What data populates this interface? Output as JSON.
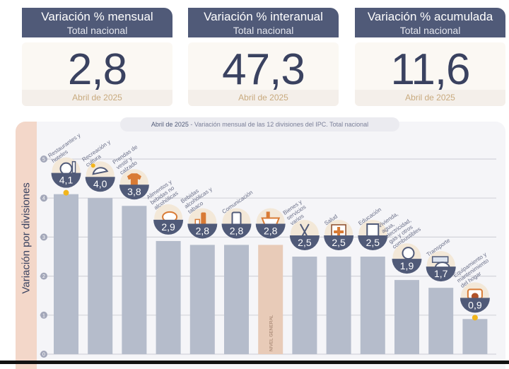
{
  "cards": [
    {
      "title": "Variación % mensual",
      "subtitle": "Total nacional",
      "value": "2,8",
      "date": "Abril de 2025"
    },
    {
      "title": "Variación % interanual",
      "subtitle": "Total nacional",
      "value": "47,3",
      "date": "Abril de 2025"
    },
    {
      "title": "Variación % acumulada",
      "subtitle": "Total nacional",
      "value": "11,6",
      "date": "Abril de 2025"
    }
  ],
  "chart_data": {
    "type": "bar",
    "title_date": "Abril de 2025",
    "title": "- Variación mensual de las 12 divisiones del IPC. Total nacional",
    "ylabel": "Variación por divisiones",
    "ylim": [
      0,
      5
    ],
    "yticks": [
      "0",
      "1",
      "2",
      "3",
      "4",
      "5"
    ],
    "categories": [
      "Restaurantes y hoteles",
      "Recreación y cultura",
      "Prendas de vestir y calzado",
      "Alimentos y bebidas no alcohólicas",
      "Bebidas alcohólicas y tabaco",
      "Comunicación",
      "Nivel general",
      "Bienes y servicios varios",
      "Salud",
      "Educación",
      "Vivienda, agua, electricidad, gas y otros combustibles",
      "Transporte",
      "Equipamiento y mantenimiento del hogar"
    ],
    "values": [
      4.1,
      4.0,
      3.8,
      2.9,
      2.8,
      2.8,
      2.8,
      2.5,
      2.5,
      2.5,
      1.9,
      1.7,
      0.9
    ],
    "value_labels": [
      "4,1",
      "4,0",
      "3,8",
      "2,9",
      "2,8",
      "2,8",
      "2,8",
      "2,5",
      "2,5",
      "2,5",
      "1,9",
      "1,7",
      "0,9"
    ],
    "icons": [
      "restaurant-icon",
      "beach-umbrella-icon",
      "tshirt-icon",
      "food-icon",
      "wine-icon",
      "phone-icon",
      "shopping-basket-icon",
      "scissors-icon",
      "medical-cross-icon",
      "notebook-icon",
      "lightbulb-icon",
      "bus-icon",
      "appliance-icon"
    ],
    "general_label": "NIVEL GENERAL",
    "colors": {
      "bar": "#b5bccb",
      "general": "#e8cbb8",
      "badge": "#505a78",
      "accent": "#f2b51c"
    }
  }
}
